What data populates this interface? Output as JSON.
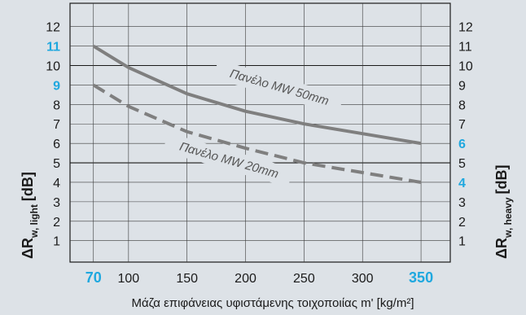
{
  "chart_data": {
    "type": "line",
    "x": [
      70,
      100,
      150,
      200,
      250,
      300,
      350
    ],
    "series": [
      {
        "name": "Πανέλο MW 50mm",
        "values": [
          11,
          9.9,
          8.55,
          7.65,
          7.0,
          6.5,
          6.0
        ],
        "style": "solid",
        "color": "#7f7f7f"
      },
      {
        "name": "Πανέλο MW 20mm",
        "values": [
          9,
          7.9,
          6.6,
          5.75,
          5.0,
          4.5,
          4.0
        ],
        "style": "dashed",
        "color": "#7f7f7f"
      }
    ],
    "xlim": [
      50,
      375
    ],
    "ylim": [
      -0.1,
      13.2
    ],
    "yticks_left": [
      "1",
      "2",
      "3",
      "4",
      "5",
      "6",
      "7",
      "8",
      "9",
      "10",
      "11",
      "12"
    ],
    "yticks_left_highlight": [
      "9",
      "11"
    ],
    "yticks_right": [
      "1",
      "2",
      "3",
      "4",
      "5",
      "6",
      "7",
      "8",
      "9",
      "10",
      "11",
      "12"
    ],
    "yticks_right_highlight": [
      "4",
      "6"
    ],
    "xticks": [
      "70",
      "100",
      "150",
      "200",
      "250",
      "300",
      "350"
    ],
    "xticks_highlight": [
      "70",
      "350"
    ],
    "xlabel": "Μάζα επιφάνειας υφιστάμενης τοιχοποιίας m' [kg/m²]",
    "ylabel_left": {
      "main": "ΔR",
      "sub": "w, light",
      "unit": "[dB]"
    },
    "ylabel_right": {
      "main": "ΔR",
      "sub": "w, heavy",
      "unit": "[dB]"
    },
    "annotations": [
      "Πανέλο MW 50mm",
      "Πανέλο MW 20mm"
    ],
    "colors": {
      "background": "#dde2e7",
      "grid": "#1a1a1a",
      "highlight": "#1fa8df",
      "line": "#7f7f7f"
    }
  }
}
